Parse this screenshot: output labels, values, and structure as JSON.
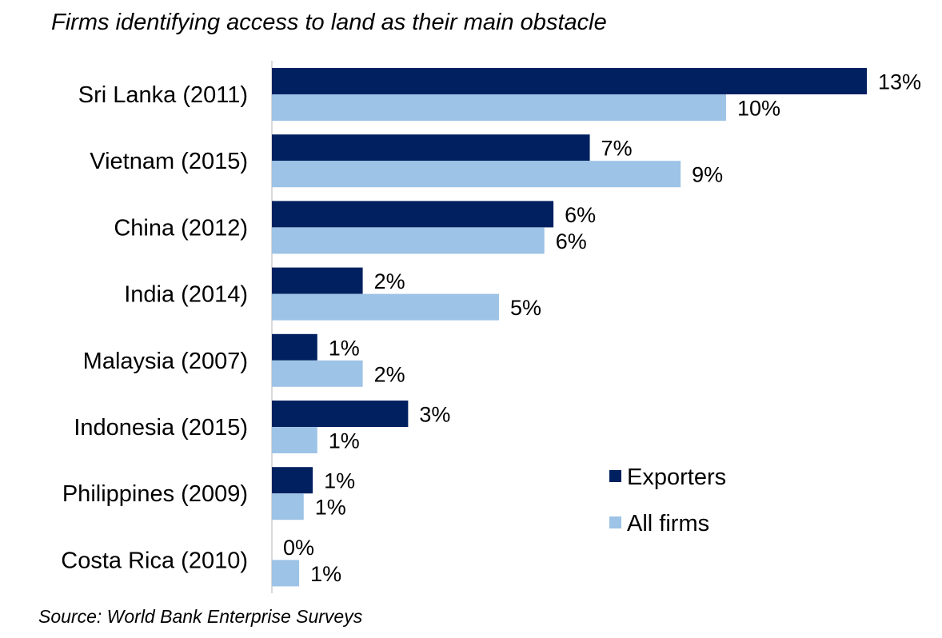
{
  "chart_data": {
    "type": "bar",
    "orientation": "horizontal",
    "title": "Firms identifying access to land as their main obstacle",
    "source": "Source: World Bank Enterprise Surveys",
    "categories": [
      "Sri Lanka (2011)",
      "Vietnam (2015)",
      "China (2012)",
      "India (2014)",
      "Malaysia (2007)",
      "Indonesia (2015)",
      "Philippines (2009)",
      "Costa Rica (2010)"
    ],
    "series": [
      {
        "name": "Exporters",
        "color": "#002060",
        "values": [
          13.1,
          7.0,
          6.2,
          2.0,
          1.0,
          3.0,
          0.9,
          0.0
        ],
        "labels": [
          "13%",
          "7%",
          "6%",
          "2%",
          "1%",
          "3%",
          "1%",
          "0%"
        ]
      },
      {
        "name": "All firms",
        "color": "#9dc3e6",
        "values": [
          10.0,
          9.0,
          6.0,
          5.0,
          2.0,
          1.0,
          0.7,
          0.6
        ],
        "labels": [
          "10%",
          "9%",
          "6%",
          "5%",
          "2%",
          "1%",
          "1%",
          "1%"
        ]
      }
    ],
    "xlim": [
      0,
      13.1
    ],
    "legend_position": "bottom-right",
    "grid": false
  }
}
